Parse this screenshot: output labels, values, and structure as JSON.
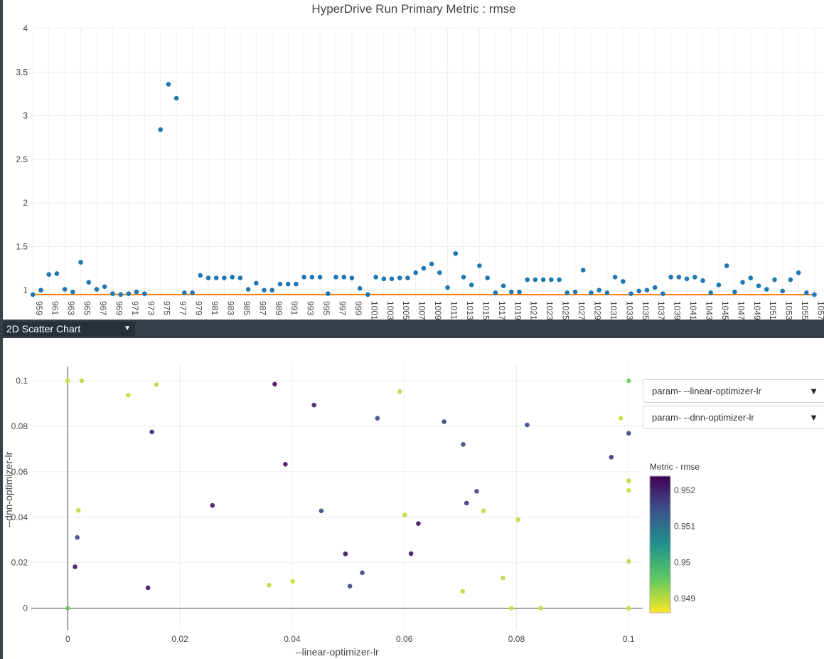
{
  "chart_data": [
    {
      "type": "scatter",
      "title": "HyperDrive Run Primary Metric : rmse",
      "xlabel": "",
      "ylabel": "",
      "ylim": [
        0.9,
        4.0
      ],
      "yticks": [
        "1",
        "1.5",
        "2",
        "2.5",
        "3",
        "3.5",
        "4"
      ],
      "grid": true,
      "series": [
        {
          "type": "scatter",
          "color": "#1f77b4",
          "x": [
            959,
            960,
            961,
            962,
            963,
            964,
            965,
            966,
            967,
            968,
            969,
            970,
            971,
            972,
            973,
            975,
            976,
            977,
            978,
            979,
            980,
            981,
            982,
            983,
            984,
            985,
            986,
            987,
            988,
            989,
            990,
            991,
            992,
            993,
            994,
            995,
            996,
            997,
            998,
            999,
            1000,
            1001,
            1002,
            1003,
            1004,
            1005,
            1006,
            1007,
            1008,
            1009,
            1010,
            1011,
            1012,
            1013,
            1014,
            1015,
            1016,
            1017,
            1018,
            1019,
            1020,
            1021,
            1022,
            1023,
            1024,
            1025,
            1026,
            1027,
            1028,
            1029,
            1030,
            1031,
            1032,
            1033,
            1034,
            1035,
            1036,
            1037,
            1038,
            1039,
            1040,
            1041,
            1042,
            1043,
            1044,
            1045,
            1046,
            1047,
            1048,
            1049,
            1050,
            1051,
            1052,
            1053,
            1054,
            1055,
            1056,
            1057
          ],
          "y": [
            0.95,
            1.0,
            1.18,
            1.19,
            1.01,
            0.98,
            1.32,
            1.09,
            1.01,
            1.04,
            0.96,
            0.95,
            0.96,
            0.98,
            0.96,
            2.84,
            3.36,
            3.2,
            0.97,
            0.97,
            1.17,
            1.14,
            1.14,
            1.14,
            1.15,
            1.14,
            1.01,
            1.08,
            1.0,
            1.0,
            1.07,
            1.07,
            1.07,
            1.15,
            1.15,
            1.15,
            0.96,
            1.15,
            1.15,
            1.14,
            1.02,
            0.95,
            1.15,
            1.13,
            1.13,
            1.14,
            1.14,
            1.2,
            1.25,
            1.3,
            1.2,
            1.03,
            1.42,
            1.15,
            1.06,
            1.28,
            1.14,
            0.97,
            1.05,
            0.98,
            0.98,
            1.12,
            1.12,
            1.12,
            1.12,
            1.12,
            0.97,
            0.98,
            1.23,
            0.97,
            1.0,
            0.97,
            1.15,
            1.1,
            0.96,
            0.99,
            1.0,
            1.03,
            0.96,
            1.15,
            1.15,
            1.13,
            1.15,
            1.11,
            0.97,
            1.06,
            1.28,
            0.98,
            1.09,
            1.14,
            1.05,
            1.01,
            1.12,
            0.99,
            1.12,
            1.2,
            0.97,
            0.95
          ]
        },
        {
          "type": "line",
          "color": "#ff7f0e",
          "x": [
            959,
            1057
          ],
          "y": [
            0.95,
            0.949
          ]
        }
      ],
      "categories": [
        "959",
        "961",
        "963",
        "965",
        "967",
        "969",
        "971",
        "973",
        "975",
        "977",
        "979",
        "981",
        "983",
        "985",
        "987",
        "989",
        "991",
        "993",
        "995",
        "997",
        "999",
        "1001",
        "1003",
        "1005",
        "1007",
        "1009",
        "1011",
        "1013",
        "1015",
        "1017",
        "1019",
        "1021",
        "1023",
        "1025",
        "1027",
        "1029",
        "1031",
        "1033",
        "1035",
        "1037",
        "1039",
        "1041",
        "1043",
        "1045",
        "1047",
        "1049",
        "1051",
        "1053",
        "1055",
        "1057"
      ],
      "xlim": [
        958.8,
        1058.2
      ]
    },
    {
      "type": "scatter",
      "title": "",
      "xlabel": "--linear-optimizer-lr",
      "ylabel": "--dnn-optimizer-lr",
      "xlim": [
        -0.0065,
        0.1025
      ],
      "ylim": [
        -0.0095,
        0.1075
      ],
      "xticks": [
        0,
        0.02,
        0.04,
        0.06,
        0.08,
        0.1
      ],
      "yticks": [
        0,
        0.02,
        0.04,
        0.06,
        0.08,
        0.1
      ],
      "xtick_labels": [
        "0",
        "0.02",
        "0.04",
        "0.06",
        "0.08",
        "0.1"
      ],
      "ytick_labels": [
        "0",
        "0.02",
        "0.04",
        "0.06",
        "0.08",
        "0.1"
      ],
      "grid": true,
      "colorbar": {
        "title": "Metric - rmse",
        "range": [
          0.9486,
          0.9524
        ],
        "ticks": [
          0.949,
          0.95,
          0.951,
          0.952
        ],
        "tick_labels": [
          "0.949",
          "0.95",
          "0.951",
          "0.952"
        ],
        "colors": [
          "#fde725",
          "#5ec962",
          "#21918c",
          "#3b528b",
          "#440154"
        ]
      },
      "points": [
        {
          "x": 0.0,
          "y": 0.1,
          "c": 0.9489
        },
        {
          "x": 0.0025,
          "y": 0.1,
          "c": 0.949
        },
        {
          "x": 0.0108,
          "y": 0.0937,
          "c": 0.9489
        },
        {
          "x": 0.0158,
          "y": 0.0983,
          "c": 0.949
        },
        {
          "x": 0.0369,
          "y": 0.0985,
          "c": 0.9523
        },
        {
          "x": 0.0439,
          "y": 0.0893,
          "c": 0.9521
        },
        {
          "x": 0.0592,
          "y": 0.0952,
          "c": 0.949
        },
        {
          "x": 0.1,
          "y": 0.1,
          "c": 0.9495
        },
        {
          "x": 0.015,
          "y": 0.0775,
          "c": 0.952
        },
        {
          "x": 0.0552,
          "y": 0.0835,
          "c": 0.9515
        },
        {
          "x": 0.0671,
          "y": 0.082,
          "c": 0.9516
        },
        {
          "x": 0.0819,
          "y": 0.0806,
          "c": 0.9516
        },
        {
          "x": 0.0986,
          "y": 0.0835,
          "c": 0.9489
        },
        {
          "x": 0.1,
          "y": 0.0769,
          "c": 0.9516
        },
        {
          "x": 0.0388,
          "y": 0.0633,
          "c": 0.9522
        },
        {
          "x": 0.0705,
          "y": 0.072,
          "c": 0.9516
        },
        {
          "x": 0.0969,
          "y": 0.0664,
          "c": 0.9518
        },
        {
          "x": 0.1,
          "y": 0.056,
          "c": 0.949
        },
        {
          "x": 0.1,
          "y": 0.0518,
          "c": 0.9489
        },
        {
          "x": 0.0729,
          "y": 0.0514,
          "c": 0.9516
        },
        {
          "x": 0.0711,
          "y": 0.0462,
          "c": 0.9518
        },
        {
          "x": 0.0258,
          "y": 0.0452,
          "c": 0.9522
        },
        {
          "x": 0.0452,
          "y": 0.0428,
          "c": 0.9516
        },
        {
          "x": 0.0019,
          "y": 0.043,
          "c": 0.949
        },
        {
          "x": 0.0741,
          "y": 0.0428,
          "c": 0.949
        },
        {
          "x": 0.0601,
          "y": 0.041,
          "c": 0.949
        },
        {
          "x": 0.0625,
          "y": 0.0372,
          "c": 0.9522
        },
        {
          "x": 0.0803,
          "y": 0.0389,
          "c": 0.949
        },
        {
          "x": 0.0017,
          "y": 0.0311,
          "c": 0.9516
        },
        {
          "x": 0.0495,
          "y": 0.0239,
          "c": 0.9522
        },
        {
          "x": 0.0612,
          "y": 0.024,
          "c": 0.9522
        },
        {
          "x": 0.0013,
          "y": 0.0182,
          "c": 0.9522
        },
        {
          "x": 0.0525,
          "y": 0.0156,
          "c": 0.9516
        },
        {
          "x": 0.0503,
          "y": 0.0097,
          "c": 0.9516
        },
        {
          "x": 0.0143,
          "y": 0.009,
          "c": 0.9522
        },
        {
          "x": 0.0359,
          "y": 0.0101,
          "c": 0.949
        },
        {
          "x": 0.0401,
          "y": 0.0118,
          "c": 0.9489
        },
        {
          "x": 0.0704,
          "y": 0.0074,
          "c": 0.949
        },
        {
          "x": 0.0776,
          "y": 0.0133,
          "c": 0.949
        },
        {
          "x": 0.1,
          "y": 0.0206,
          "c": 0.949
        },
        {
          "x": 0.0,
          "y": 0.0,
          "c": 0.9495
        },
        {
          "x": 0.0791,
          "y": 0.0,
          "c": 0.9489
        },
        {
          "x": 0.0843,
          "y": 0.0,
          "c": 0.9489
        },
        {
          "x": 0.1,
          "y": 0.0,
          "c": 0.9489
        }
      ]
    }
  ],
  "controls": {
    "chart_type_label": "2D Scatter Chart",
    "x_param_label": "param- --linear-optimizer-lr",
    "y_param_label": "param- --dnn-optimizer-lr",
    "dropdown_arrow": "▼",
    "select_caret": "▼"
  },
  "colors": {
    "accent_blue": "#1f77b4",
    "accent_orange": "#ff7f0e",
    "toolbar": "#363d47"
  }
}
